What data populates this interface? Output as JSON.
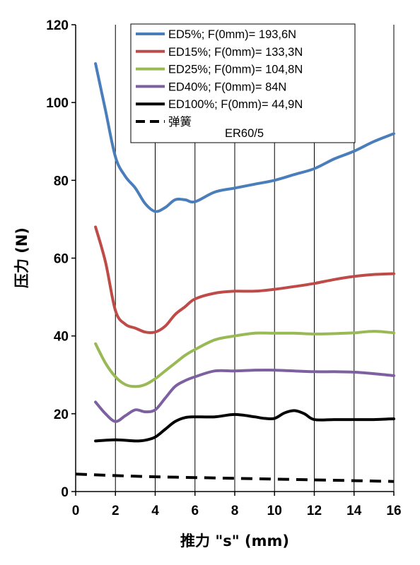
{
  "chart_data": {
    "type": "line",
    "xlabel": "推力 \"s\" (mm)",
    "ylabel": "压力  (N)",
    "xlim": [
      0,
      16
    ],
    "ylim": [
      0,
      120
    ],
    "x_ticks": [
      "0",
      "2",
      "4",
      "6",
      "8",
      "10",
      "12",
      "14",
      "16"
    ],
    "y_ticks": [
      "0",
      "20",
      "40",
      "60",
      "80",
      "100",
      "120"
    ],
    "grid": "vertical",
    "legend_position": "top-right",
    "series": [
      {
        "name": "ED5%; F(0mm)=  193,6N",
        "color": "#4a7ebb",
        "style": "solid",
        "x": [
          1,
          1.5,
          2,
          2.5,
          3,
          3.5,
          4,
          4.5,
          5,
          5.5,
          6,
          7,
          8,
          9,
          10,
          11,
          12,
          13,
          14,
          15,
          16
        ],
        "y": [
          110,
          98,
          86,
          81,
          78,
          74,
          72,
          73,
          75,
          75,
          74.5,
          77,
          78,
          79,
          80,
          81.5,
          83,
          85.5,
          87.5,
          90,
          92
        ]
      },
      {
        "name": "ED15%; F(0mm)= 133,3N",
        "color": "#be4b48",
        "style": "solid",
        "x": [
          1,
          1.5,
          2,
          2.5,
          3,
          3.5,
          4,
          4.5,
          5,
          5.5,
          6,
          7,
          8,
          9,
          10,
          11,
          12,
          13,
          14,
          15,
          16
        ],
        "y": [
          68,
          59,
          46.5,
          43,
          42,
          41,
          41,
          42.5,
          45.5,
          47.5,
          49.5,
          51,
          51.5,
          51.5,
          52,
          52.7,
          53.5,
          54.5,
          55.3,
          55.8,
          56
        ]
      },
      {
        "name": "ED25%; F(0mm)=  104,8N",
        "color": "#98b954",
        "style": "solid",
        "x": [
          1,
          1.5,
          2,
          2.5,
          3,
          3.5,
          4,
          4.5,
          5,
          5.5,
          6,
          7,
          8,
          9,
          10,
          11,
          12,
          13,
          14,
          15,
          16
        ],
        "y": [
          38,
          33,
          29.5,
          27.5,
          27,
          27.5,
          29,
          31,
          33,
          35,
          36.5,
          39,
          40,
          40.7,
          40.7,
          40.7,
          40.5,
          40.6,
          40.8,
          41.2,
          40.8
        ]
      },
      {
        "name": "ED40%; F(0mm)= 84N",
        "color": "#7d60a0",
        "style": "solid",
        "x": [
          1,
          1.5,
          2,
          2.5,
          3,
          3.5,
          4,
          4.5,
          5,
          5.5,
          6,
          7,
          8,
          9,
          10,
          11,
          12,
          13,
          14,
          15,
          16
        ],
        "y": [
          23,
          20,
          18,
          19.5,
          21,
          20.5,
          21,
          24,
          27,
          28.5,
          29.5,
          31,
          31,
          31.2,
          31.2,
          31,
          30.8,
          30.8,
          30.7,
          30.3,
          29.8
        ]
      },
      {
        "name": "ED100%; F(0mm)= 44,9N",
        "color": "#000000",
        "style": "solid",
        "x": [
          1,
          2,
          3,
          3.5,
          4,
          4.5,
          5,
          5.5,
          6,
          7,
          8,
          9,
          9.5,
          10,
          10.5,
          11,
          11.5,
          12,
          13,
          14,
          15,
          16
        ],
        "y": [
          13,
          13.3,
          13,
          13.2,
          14,
          16,
          18,
          19,
          19.2,
          19.2,
          19.8,
          19.2,
          18.8,
          18.8,
          20.2,
          20.8,
          20,
          18.5,
          18.5,
          18.5,
          18.5,
          18.7
        ]
      },
      {
        "name": "弹簧",
        "color": "#000000",
        "style": "dashed",
        "x": [
          0,
          2,
          4,
          6,
          8,
          10,
          12,
          14,
          16
        ],
        "y": [
          4.5,
          4.1,
          3.8,
          3.6,
          3.4,
          3.2,
          3.0,
          2.8,
          2.6
        ]
      }
    ],
    "legend_note": "ER60/5"
  }
}
